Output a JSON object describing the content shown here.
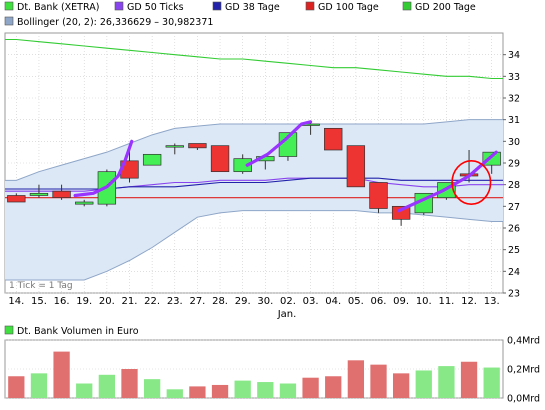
{
  "colors": {
    "price_legend": "#40e040",
    "gd50": "#8844ee",
    "gd38": "#2222aa",
    "gd100": "#dd2222",
    "gd200": "#33cc33",
    "bollinger_fill": "#dde8f6",
    "bollinger_line": "#8ea6c8",
    "up_candle": "#44ee55",
    "down_candle": "#ee3333",
    "volume_bar": "#e07070",
    "volume_bar_up": "#88e888",
    "grid": "#cccccc",
    "annotation_line": "#9933ff",
    "annotation_circle": "#ff0000"
  },
  "legend": {
    "price": "Dt. Bank (XETRA)",
    "gd50": "GD 50 Ticks",
    "gd38": "GD 38 Tage",
    "gd100": "GD 100 Tage",
    "gd200": "GD 200 Tage",
    "bollinger": "Bollinger (20, 2): 26,336629 – 30,982371",
    "volume": "Dt. Bank Volumen in Euro"
  },
  "tick_note": "1 Tick = 1 Tag",
  "x_month_label": "Jan.",
  "chart_data": [
    {
      "type": "candlestick",
      "ylim": [
        23,
        35
      ],
      "y_ticks": [
        23,
        24,
        25,
        26,
        27,
        28,
        29,
        30,
        31,
        32,
        33,
        34
      ],
      "categories": [
        "14.",
        "15.",
        "16.",
        "19.",
        "20.",
        "21.",
        "22.",
        "23.",
        "27.",
        "28.",
        "29.",
        "30.",
        "02.",
        "03.",
        "04.",
        "05.",
        "06.",
        "09.",
        "10.",
        "11.",
        "12.",
        "13."
      ],
      "candles": [
        {
          "o": 27.5,
          "h": 27.6,
          "l": 27.2,
          "c": 27.2
        },
        {
          "o": 27.5,
          "h": 28.0,
          "l": 27.4,
          "c": 27.6
        },
        {
          "o": 27.7,
          "h": 28.0,
          "l": 27.3,
          "c": 27.4
        },
        {
          "o": 27.1,
          "h": 27.3,
          "l": 27.0,
          "c": 27.2
        },
        {
          "o": 27.1,
          "h": 28.7,
          "l": 27.0,
          "c": 28.6
        },
        {
          "o": 29.1,
          "h": 29.8,
          "l": 28.1,
          "c": 28.3
        },
        {
          "o": 28.9,
          "h": 29.4,
          "l": 28.9,
          "c": 29.4
        },
        {
          "o": 29.8,
          "h": 29.9,
          "l": 29.4,
          "c": 29.8
        },
        {
          "o": 29.9,
          "h": 29.9,
          "l": 29.6,
          "c": 29.7
        },
        {
          "o": 29.8,
          "h": 29.8,
          "l": 28.6,
          "c": 28.6
        },
        {
          "o": 28.6,
          "h": 29.4,
          "l": 28.5,
          "c": 29.2
        },
        {
          "o": 29.1,
          "h": 29.3,
          "l": 28.7,
          "c": 29.3
        },
        {
          "o": 29.3,
          "h": 30.4,
          "l": 29.1,
          "c": 30.4
        },
        {
          "o": 30.8,
          "h": 30.9,
          "l": 30.3,
          "c": 30.8
        },
        {
          "o": 30.6,
          "h": 30.6,
          "l": 29.6,
          "c": 29.6
        },
        {
          "o": 29.8,
          "h": 29.8,
          "l": 27.9,
          "c": 27.9
        },
        {
          "o": 28.1,
          "h": 28.1,
          "l": 26.7,
          "c": 26.9
        },
        {
          "o": 27.0,
          "h": 27.0,
          "l": 26.1,
          "c": 26.4
        },
        {
          "o": 26.7,
          "h": 27.6,
          "l": 26.6,
          "c": 27.6
        },
        {
          "o": 27.4,
          "h": 28.1,
          "l": 27.3,
          "c": 28.1
        },
        {
          "o": 28.5,
          "h": 29.6,
          "l": 28.1,
          "c": 28.4
        },
        {
          "o": 28.9,
          "h": 29.5,
          "l": 28.5,
          "c": 29.5
        }
      ],
      "series": [
        {
          "name": "GD 50 Ticks",
          "key": "gd50",
          "values": [
            27.7,
            27.7,
            27.7,
            27.7,
            27.8,
            27.9,
            28.0,
            28.1,
            28.1,
            28.2,
            28.2,
            28.2,
            28.3,
            28.3,
            28.3,
            28.3,
            28.1,
            28.0,
            27.9,
            27.9,
            28.0,
            28.0
          ]
        },
        {
          "name": "GD 38 Tage",
          "key": "gd38",
          "values": [
            27.8,
            27.8,
            27.8,
            27.8,
            27.8,
            27.9,
            27.9,
            27.9,
            28.0,
            28.1,
            28.1,
            28.1,
            28.2,
            28.3,
            28.3,
            28.3,
            28.3,
            28.2,
            28.2,
            28.2,
            28.2,
            28.2
          ]
        },
        {
          "name": "GD 100 Tage",
          "key": "gd100",
          "values": [
            27.4,
            27.4,
            27.4,
            27.4,
            27.4,
            27.4,
            27.4,
            27.4,
            27.4,
            27.4,
            27.4,
            27.4,
            27.4,
            27.4,
            27.4,
            27.4,
            27.4,
            27.4,
            27.4,
            27.4,
            27.4,
            27.4
          ]
        },
        {
          "name": "GD 200 Tage",
          "key": "gd200",
          "values": [
            34.7,
            34.6,
            34.5,
            34.4,
            34.3,
            34.2,
            34.1,
            34.0,
            33.9,
            33.8,
            33.8,
            33.7,
            33.6,
            33.5,
            33.4,
            33.4,
            33.3,
            33.2,
            33.1,
            33.0,
            33.0,
            32.9
          ]
        }
      ],
      "bollinger_upper": [
        28.2,
        28.6,
        28.9,
        29.2,
        29.5,
        29.9,
        30.3,
        30.6,
        30.7,
        30.8,
        30.8,
        30.8,
        30.8,
        30.8,
        30.8,
        30.8,
        30.8,
        30.8,
        30.8,
        30.9,
        31.0,
        31.0
      ],
      "bollinger_lower": [
        23.6,
        23.6,
        23.6,
        23.6,
        24.0,
        24.5,
        25.1,
        25.8,
        26.5,
        26.7,
        26.8,
        26.8,
        26.8,
        26.8,
        26.8,
        26.8,
        26.7,
        26.7,
        26.6,
        26.5,
        26.4,
        26.3
      ],
      "annotations": [
        {
          "kind": "line",
          "points": [
            [
              2.6,
              27.5
            ],
            [
              3.4,
              27.6
            ],
            [
              4,
              27.9
            ],
            [
              4.5,
              28.4
            ],
            [
              4.8,
              29.1
            ],
            [
              5.1,
              30.0
            ]
          ]
        },
        {
          "kind": "line",
          "points": [
            [
              10.2,
              28.9
            ],
            [
              11.1,
              29.4
            ],
            [
              11.9,
              30.1
            ],
            [
              12.6,
              30.8
            ],
            [
              13.0,
              30.9
            ]
          ]
        },
        {
          "kind": "line",
          "points": [
            [
              16.9,
              26.8
            ],
            [
              18.8,
              27.7
            ],
            [
              20.0,
              28.4
            ],
            [
              21.2,
              29.5
            ]
          ]
        },
        {
          "kind": "circle",
          "cx": 20.1,
          "cy": 28.1,
          "rx": 0.85,
          "ry": 1.0
        }
      ]
    },
    {
      "type": "bar",
      "title": "Dt. Bank Volumen in Euro",
      "ylim": [
        0,
        0.4
      ],
      "y_ticks": [
        0,
        0.2,
        0.4
      ],
      "y_tick_labels": [
        "0,0Mrd",
        "0,2Mrd",
        "0,4Mrd"
      ],
      "values": [
        0.15,
        0.17,
        0.32,
        0.1,
        0.16,
        0.2,
        0.13,
        0.06,
        0.08,
        0.09,
        0.12,
        0.11,
        0.1,
        0.14,
        0.15,
        0.26,
        0.23,
        0.17,
        0.19,
        0.22,
        0.25,
        0.21
      ],
      "up": [
        false,
        true,
        false,
        true,
        true,
        false,
        true,
        true,
        false,
        false,
        true,
        true,
        true,
        false,
        false,
        false,
        false,
        false,
        true,
        true,
        false,
        true
      ]
    }
  ]
}
